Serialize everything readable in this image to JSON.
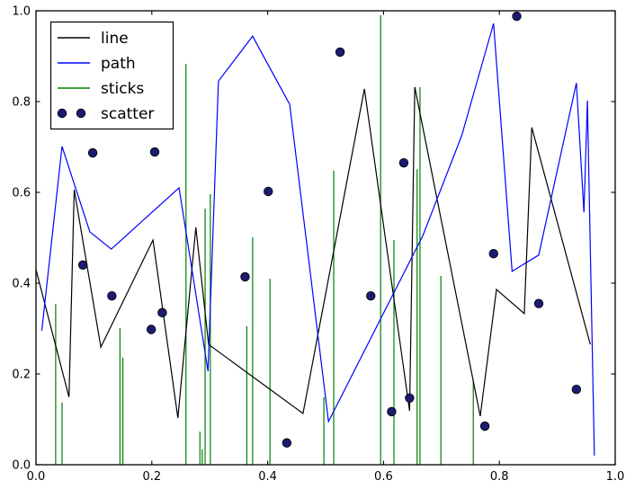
{
  "chart_data": {
    "type": "line",
    "title": "",
    "xlabel": "",
    "ylabel": "",
    "xlim": [
      0.0,
      1.0
    ],
    "ylim": [
      0.0,
      1.0
    ],
    "grid": false,
    "x_ticks": [
      0.0,
      0.2,
      0.4,
      0.6,
      0.8,
      1.0
    ],
    "y_ticks": [
      0.0,
      0.2,
      0.4,
      0.6,
      0.8,
      1.0
    ],
    "x_tick_labels": [
      "0.0",
      "0.2",
      "0.4",
      "0.6",
      "0.8",
      "1.0"
    ],
    "y_tick_labels": [
      "0.0",
      "0.2",
      "0.4",
      "0.6",
      "0.8",
      "1.0"
    ],
    "legend": {
      "position": "upper-left",
      "labels": {
        "line": "line",
        "path": "path",
        "sticks": "sticks",
        "scatter": "scatter"
      }
    },
    "colors": {
      "line": "#000000",
      "path": "#0000ff",
      "sticks": "#007f00",
      "scatter_fill": "#1b1b70",
      "scatter_edge": "#000000",
      "frame": "#000000"
    },
    "series": [
      {
        "name": "line",
        "type": "polyline",
        "color_key": "line",
        "points": [
          [
            0.0,
            0.43
          ],
          [
            0.057,
            0.149
          ],
          [
            0.066,
            0.606
          ],
          [
            0.112,
            0.259
          ],
          [
            0.202,
            0.495
          ],
          [
            0.245,
            0.103
          ],
          [
            0.276,
            0.523
          ],
          [
            0.298,
            0.265
          ],
          [
            0.461,
            0.113
          ],
          [
            0.567,
            0.828
          ],
          [
            0.645,
            0.119
          ],
          [
            0.654,
            0.832
          ],
          [
            0.767,
            0.107
          ],
          [
            0.795,
            0.386
          ],
          [
            0.843,
            0.333
          ],
          [
            0.856,
            0.743
          ],
          [
            0.957,
            0.265
          ]
        ]
      },
      {
        "name": "path",
        "type": "polyline",
        "color_key": "path",
        "points": [
          [
            0.01,
            0.295
          ],
          [
            0.045,
            0.701
          ],
          [
            0.093,
            0.513
          ],
          [
            0.13,
            0.475
          ],
          [
            0.247,
            0.61
          ],
          [
            0.297,
            0.206
          ],
          [
            0.315,
            0.845
          ],
          [
            0.374,
            0.944
          ],
          [
            0.438,
            0.794
          ],
          [
            0.505,
            0.095
          ],
          [
            0.668,
            0.505
          ],
          [
            0.735,
            0.725
          ],
          [
            0.79,
            0.972
          ],
          [
            0.822,
            0.426
          ],
          [
            0.868,
            0.462
          ],
          [
            0.933,
            0.841
          ],
          [
            0.946,
            0.556
          ],
          [
            0.952,
            0.802
          ],
          [
            0.964,
            0.02
          ]
        ]
      },
      {
        "name": "sticks",
        "type": "sticks",
        "color_key": "sticks",
        "points": [
          [
            0.034,
            0.354
          ],
          [
            0.045,
            0.137
          ],
          [
            0.145,
            0.301
          ],
          [
            0.15,
            0.236
          ],
          [
            0.259,
            0.883
          ],
          [
            0.283,
            0.073
          ],
          [
            0.287,
            0.034
          ],
          [
            0.292,
            0.564
          ],
          [
            0.301,
            0.596
          ],
          [
            0.364,
            0.305
          ],
          [
            0.374,
            0.501
          ],
          [
            0.404,
            0.41
          ],
          [
            0.497,
            0.149
          ],
          [
            0.514,
            0.648
          ],
          [
            0.595,
            0.99
          ],
          [
            0.618,
            0.495
          ],
          [
            0.658,
            0.651
          ],
          [
            0.663,
            0.832
          ],
          [
            0.699,
            0.416
          ],
          [
            0.755,
            0.186
          ]
        ]
      },
      {
        "name": "scatter",
        "type": "scatter",
        "color_key": "scatter_fill",
        "points": [
          [
            0.081,
            0.44
          ],
          [
            0.098,
            0.687
          ],
          [
            0.131,
            0.372
          ],
          [
            0.199,
            0.298
          ],
          [
            0.205,
            0.689
          ],
          [
            0.218,
            0.335
          ],
          [
            0.361,
            0.414
          ],
          [
            0.401,
            0.602
          ],
          [
            0.433,
            0.048
          ],
          [
            0.525,
            0.909
          ],
          [
            0.578,
            0.372
          ],
          [
            0.614,
            0.117
          ],
          [
            0.635,
            0.665
          ],
          [
            0.645,
            0.147
          ],
          [
            0.775,
            0.085
          ],
          [
            0.79,
            0.465
          ],
          [
            0.83,
            0.988
          ],
          [
            0.868,
            0.355
          ],
          [
            0.933,
            0.166
          ]
        ]
      }
    ]
  }
}
